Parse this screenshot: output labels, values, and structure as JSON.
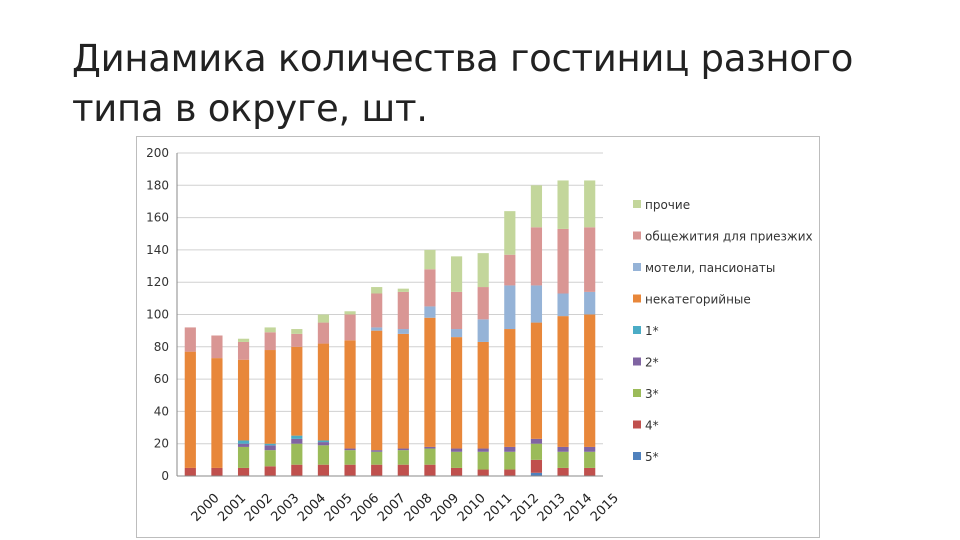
{
  "slide": {
    "title": "Динамика количества гостиниц разного типа в округе, шт."
  },
  "chart_data": {
    "type": "bar",
    "stacked": true,
    "title": "",
    "xlabel": "",
    "ylabel": "",
    "ylim": [
      0,
      200
    ],
    "yticks": [
      0,
      20,
      40,
      60,
      80,
      100,
      120,
      140,
      160,
      180,
      200
    ],
    "grid": true,
    "legend_position": "right",
    "categories": [
      "2000",
      "2001",
      "2002",
      "2003",
      "2004",
      "2005",
      "2006",
      "2007",
      "2008",
      "2009",
      "2010",
      "2011",
      "2012",
      "2013",
      "2014",
      "2015"
    ],
    "series": [
      {
        "name": "5*",
        "color": "#4f81bd",
        "values": [
          0,
          0,
          0,
          0,
          0,
          0,
          0,
          0,
          0,
          0,
          0,
          0,
          0,
          2,
          0,
          0
        ]
      },
      {
        "name": "4*",
        "color": "#c0504d",
        "values": [
          5,
          5,
          5,
          6,
          7,
          7,
          7,
          7,
          7,
          7,
          5,
          4,
          4,
          8,
          5,
          5
        ]
      },
      {
        "name": "3*",
        "color": "#9bbb59",
        "values": [
          0,
          0,
          13,
          10,
          13,
          12,
          9,
          8,
          9,
          10,
          10,
          11,
          11,
          10,
          10,
          10
        ]
      },
      {
        "name": "2*",
        "color": "#8064a2",
        "values": [
          0,
          0,
          2,
          3,
          3,
          2,
          1,
          1,
          1,
          1,
          2,
          2,
          3,
          3,
          3,
          3
        ]
      },
      {
        "name": "1*",
        "color": "#4bacc6",
        "values": [
          0,
          0,
          2,
          1,
          2,
          1,
          0,
          0,
          0,
          0,
          0,
          0,
          0,
          0,
          0,
          0
        ]
      },
      {
        "name": "некатегорийные",
        "color": "#e8873a",
        "values": [
          72,
          68,
          50,
          58,
          55,
          60,
          67,
          74,
          71,
          80,
          69,
          66,
          73,
          72,
          81,
          82
        ]
      },
      {
        "name": "мотели, пансионаты",
        "color": "#95b3d7",
        "values": [
          0,
          0,
          0,
          0,
          0,
          0,
          0,
          2,
          3,
          7,
          5,
          14,
          27,
          23,
          14,
          14
        ]
      },
      {
        "name": "общежития для приезжих",
        "color": "#d99694",
        "values": [
          15,
          14,
          11,
          11,
          8,
          13,
          16,
          21,
          23,
          23,
          23,
          20,
          19,
          36,
          40,
          40
        ]
      },
      {
        "name": "прочие",
        "color": "#c3d69b",
        "values": [
          0,
          0,
          2,
          3,
          3,
          5,
          2,
          4,
          2,
          12,
          22,
          21,
          27,
          26,
          30,
          29
        ]
      }
    ],
    "legend_order": [
      "прочие",
      "общежития для приезжих",
      "мотели, пансионаты",
      "некатегорийные",
      "1*",
      "2*",
      "3*",
      "4*",
      "5*"
    ]
  }
}
